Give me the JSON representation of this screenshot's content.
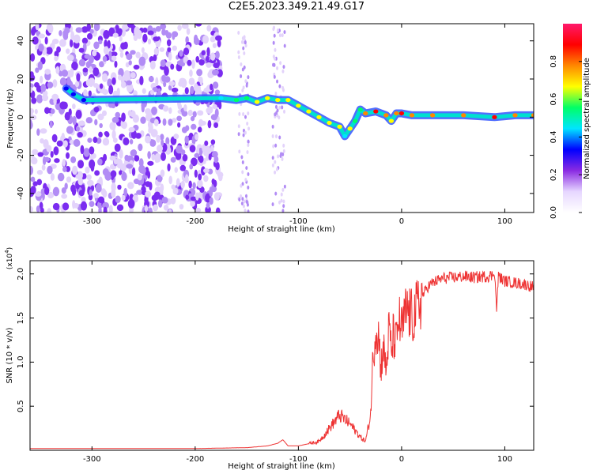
{
  "title": "C2E5.2023.349.21.49.G17",
  "chart_data": [
    {
      "type": "heatmap",
      "xlabel": "Height of straight line (km)",
      "ylabel": "Frequency (Hz)",
      "xlim": [
        -360,
        128
      ],
      "ylim": [
        -50,
        49
      ],
      "xticks": [
        -300,
        -200,
        -100,
        0,
        100
      ],
      "yticks": [
        -40,
        -20,
        0,
        20,
        40
      ],
      "grid": false,
      "colorbar": {
        "label": "Normalized spectral amplitude",
        "range": [
          0,
          1
        ],
        "ticks": [
          0.0,
          0.2,
          0.4,
          0.6,
          0.8
        ],
        "colormap": "rainbow",
        "colors": [
          "#ffffff",
          "#e6d6ff",
          "#8a2be2",
          "#0000ff",
          "#00e5ff",
          "#00ff66",
          "#ffff00",
          "#ff8800",
          "#ff0000",
          "#ff1a6b"
        ]
      },
      "noise_band": {
        "x_range": [
          -360,
          -175
        ],
        "level": 0.15
      },
      "trace": [
        {
          "x": -325,
          "y": 15,
          "amp": 0.3
        },
        {
          "x": -318,
          "y": 12,
          "amp": 0.3
        },
        {
          "x": -308,
          "y": 9,
          "amp": 0.3
        },
        {
          "x": -175,
          "y": 10,
          "amp": 0.4
        },
        {
          "x": -160,
          "y": 9,
          "amp": 0.55
        },
        {
          "x": -150,
          "y": 10,
          "amp": 0.6
        },
        {
          "x": -140,
          "y": 8,
          "amp": 0.65
        },
        {
          "x": -130,
          "y": 10,
          "amp": 0.65
        },
        {
          "x": -120,
          "y": 9,
          "amp": 0.65
        },
        {
          "x": -110,
          "y": 9,
          "amp": 0.65
        },
        {
          "x": -100,
          "y": 6,
          "amp": 0.65
        },
        {
          "x": -90,
          "y": 3,
          "amp": 0.65
        },
        {
          "x": -80,
          "y": 0,
          "amp": 0.65
        },
        {
          "x": -70,
          "y": -3,
          "amp": 0.65
        },
        {
          "x": -60,
          "y": -5,
          "amp": 0.7
        },
        {
          "x": -55,
          "y": -10,
          "amp": 0.4
        },
        {
          "x": -50,
          "y": -6,
          "amp": 0.65
        },
        {
          "x": -45,
          "y": -2,
          "amp": 0.55
        },
        {
          "x": -40,
          "y": 4,
          "amp": 0.6
        },
        {
          "x": -35,
          "y": 2,
          "amp": 0.75
        },
        {
          "x": -25,
          "y": 3,
          "amp": 0.85
        },
        {
          "x": -15,
          "y": 1,
          "amp": 0.75
        },
        {
          "x": -10,
          "y": -2,
          "amp": 0.7
        },
        {
          "x": -5,
          "y": 2,
          "amp": 0.8
        },
        {
          "x": 0,
          "y": 2,
          "amp": 0.85
        },
        {
          "x": 10,
          "y": 1,
          "amp": 0.75
        },
        {
          "x": 30,
          "y": 1,
          "amp": 0.75
        },
        {
          "x": 60,
          "y": 1,
          "amp": 0.75
        },
        {
          "x": 90,
          "y": 0,
          "amp": 0.85
        },
        {
          "x": 110,
          "y": 1,
          "amp": 0.75
        },
        {
          "x": 128,
          "y": 1,
          "amp": 0.75
        }
      ]
    },
    {
      "type": "line",
      "xlabel": "Height of straight line (km)",
      "ylabel": "SNR (10 * v/v)",
      "y_multiplier": "(x10^4)",
      "xlim": [
        -360,
        128
      ],
      "ylim": [
        0,
        2.15
      ],
      "xticks": [
        -300,
        -200,
        -100,
        0,
        100
      ],
      "yticks": [
        0.5,
        1.0,
        1.5,
        2.0
      ],
      "grid": false,
      "series": [
        {
          "color": "#ee3333",
          "x": [
            -360,
            -300,
            -200,
            -150,
            -130,
            -120,
            -115,
            -110,
            -100,
            -80,
            -70,
            -60,
            -50,
            -40,
            -35,
            -30,
            -28,
            -25,
            -22,
            -20,
            -18,
            -15,
            -12,
            -10,
            -8,
            -5,
            -3,
            0,
            5,
            10,
            15,
            20,
            25,
            30,
            40,
            50,
            60,
            70,
            80,
            88,
            90,
            92,
            94,
            96,
            100,
            110,
            120,
            128
          ],
          "y": [
            0.02,
            0.02,
            0.02,
            0.03,
            0.05,
            0.08,
            0.12,
            0.05,
            0.05,
            0.1,
            0.25,
            0.4,
            0.3,
            0.15,
            0.1,
            0.4,
            1.0,
            1.4,
            1.3,
            0.9,
            1.2,
            0.9,
            1.4,
            1.1,
            1.3,
            1.2,
            1.5,
            1.35,
            1.6,
            1.5,
            1.6,
            1.75,
            1.85,
            1.9,
            1.95,
            1.96,
            1.97,
            1.96,
            1.97,
            1.98,
            2.05,
            1.6,
            2.0,
            1.95,
            1.92,
            1.9,
            1.88,
            1.85
          ]
        }
      ]
    }
  ]
}
